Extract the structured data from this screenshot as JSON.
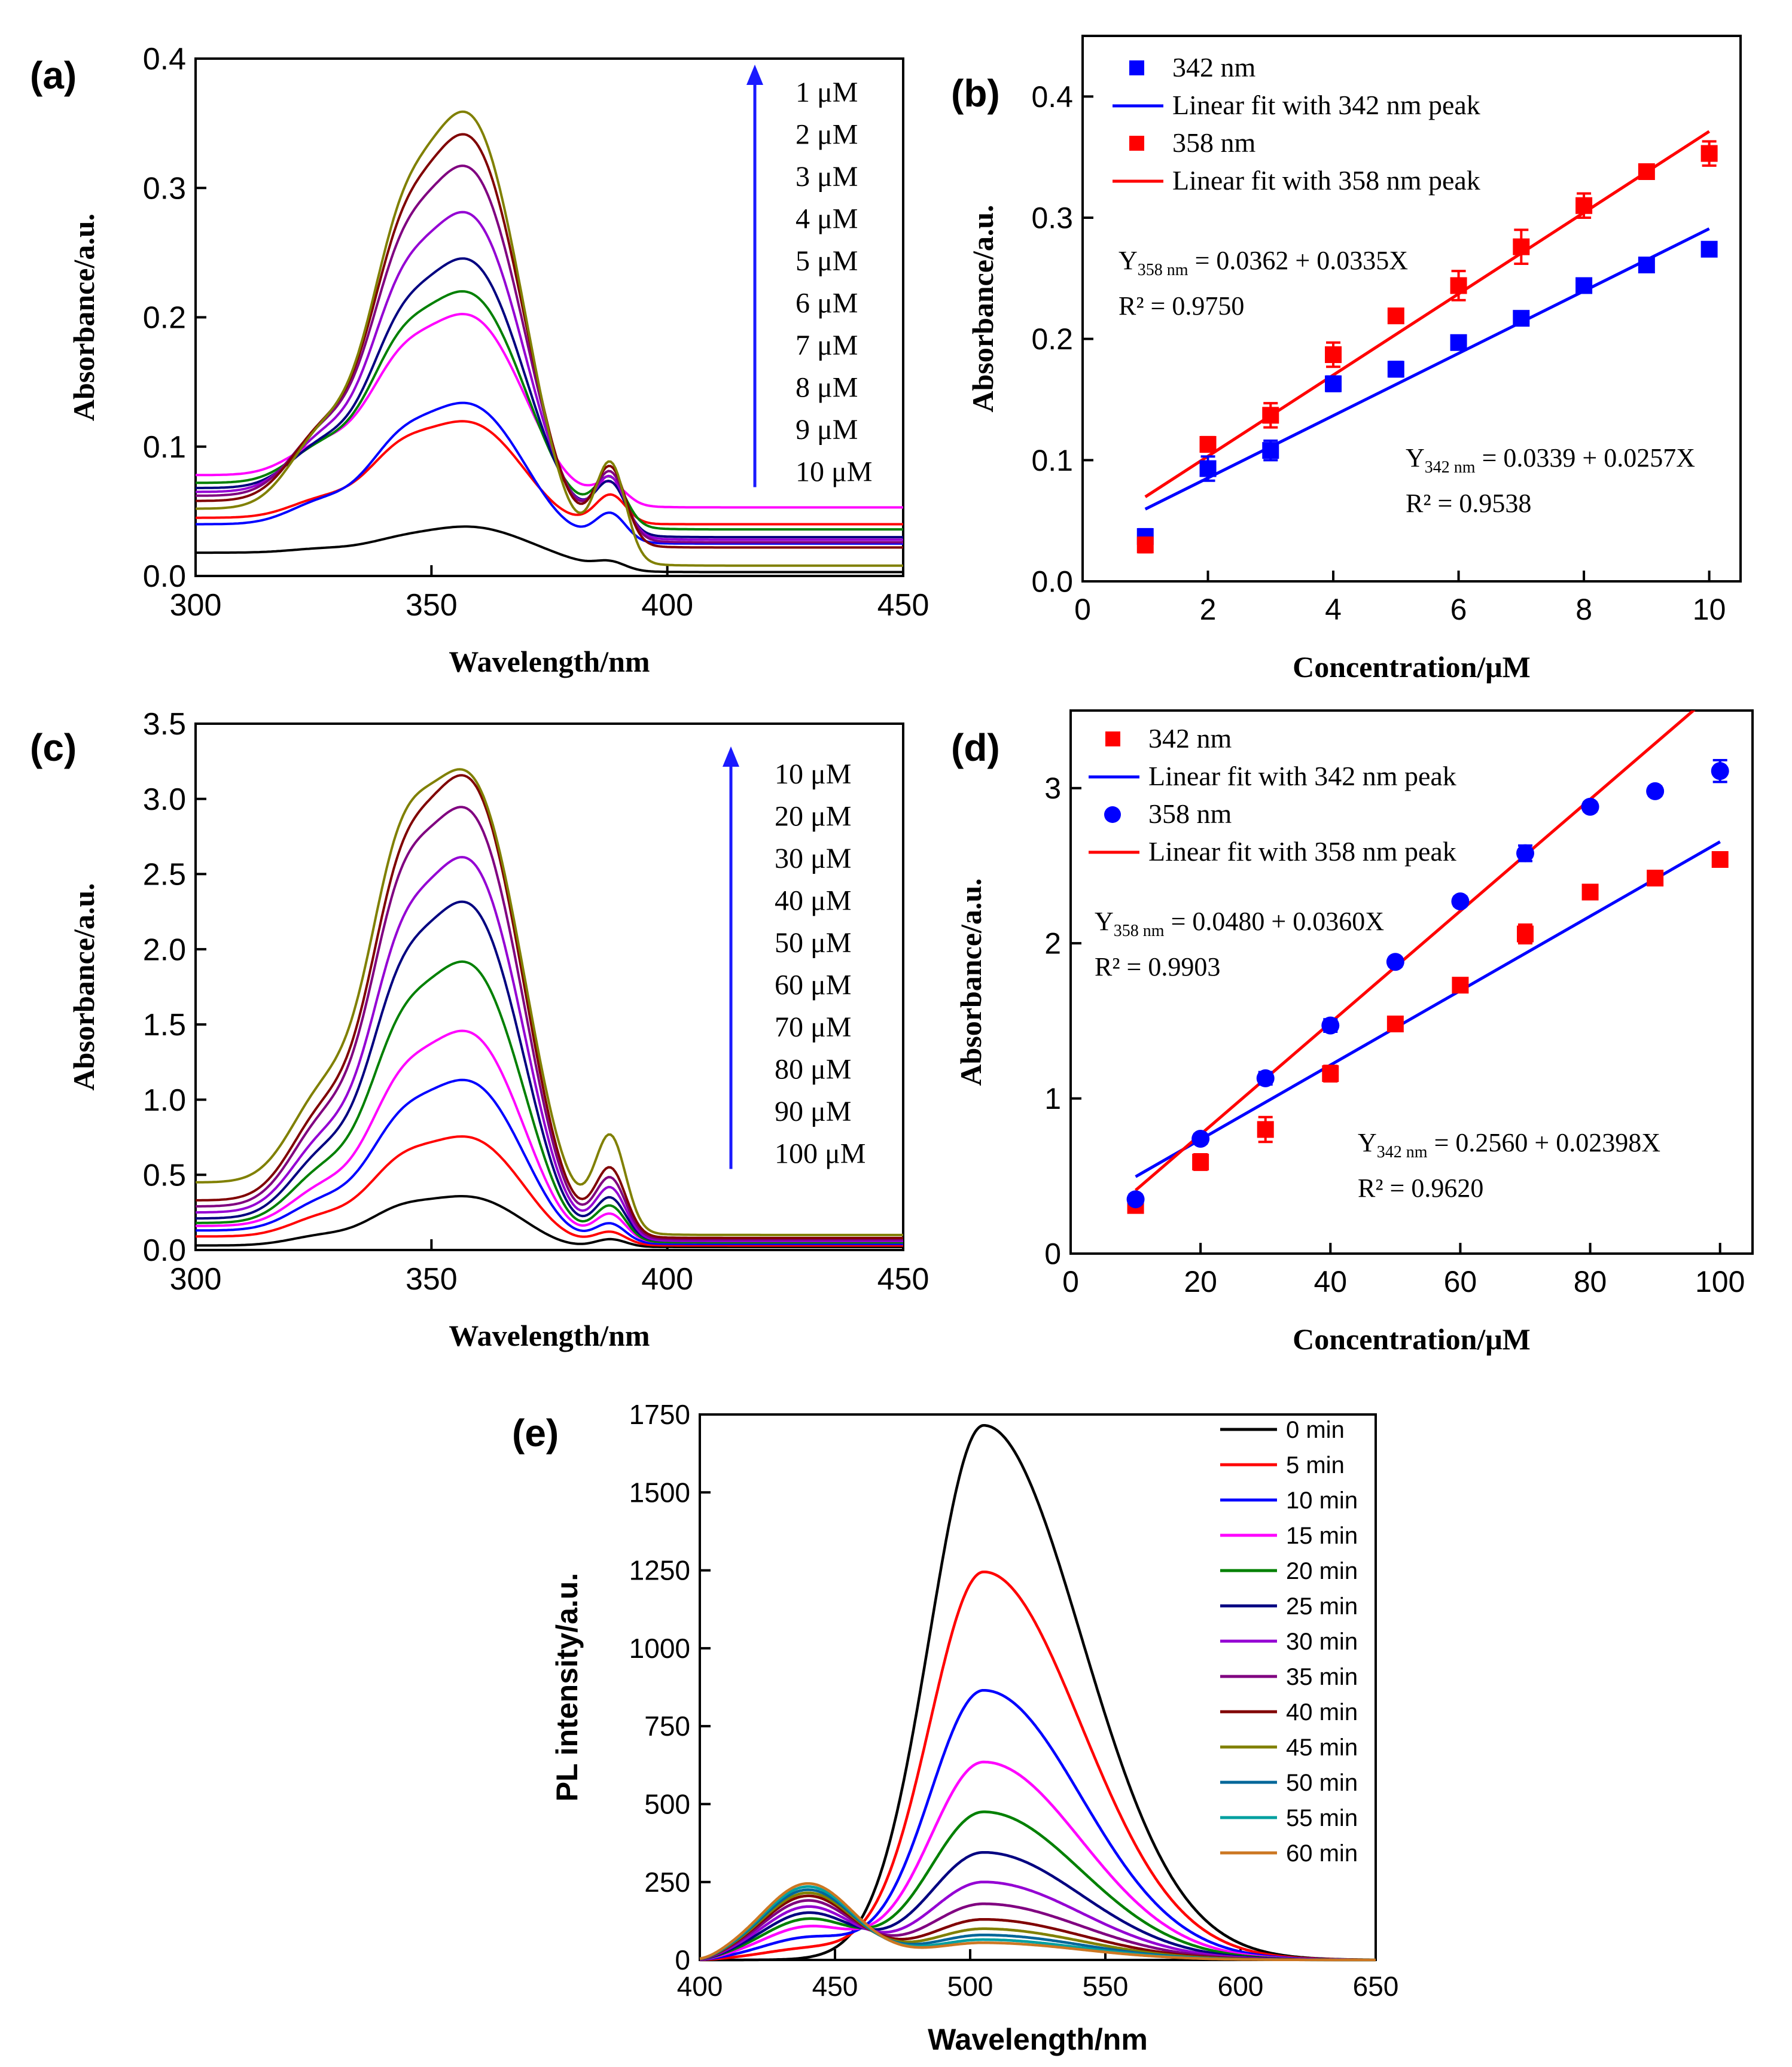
{
  "chart_data": [
    {
      "panel": "(a)",
      "type": "line",
      "xlabel": "Wavelength/nm",
      "ylabel": "Absorbance/a.u.",
      "xlim": [
        300,
        450
      ],
      "ylim": [
        0.0,
        0.4
      ],
      "xticks": [
        "300",
        "350",
        "400",
        "450"
      ],
      "yticks": [
        "0.0",
        "0.1",
        "0.2",
        "0.3",
        "0.4"
      ],
      "legend": [
        "1 μM",
        "2 μM",
        "3 μM",
        "4 μM",
        "5 μM",
        "6 μM",
        "7 μM",
        "8 μM",
        "9 μM",
        "10 μM"
      ],
      "series": [
        {
          "name": "1 μM",
          "color": "#000000",
          "base": 0.018,
          "peak358": 0.038,
          "peak342": 0.03,
          "peak388": 0.009,
          "tail": 0.003
        },
        {
          "name": "2 μM",
          "color": "#ff0000",
          "base": 0.045,
          "peak358": 0.118,
          "peak342": 0.1,
          "peak388": 0.062,
          "tail": 0.04
        },
        {
          "name": "3 μM",
          "color": "#0000ff",
          "base": 0.04,
          "peak358": 0.132,
          "peak342": 0.107,
          "peak388": 0.046,
          "tail": 0.025
        },
        {
          "name": "4 μM",
          "color": "#ff00ff",
          "base": 0.078,
          "peak358": 0.2,
          "peak342": 0.168,
          "peak388": 0.068,
          "tail": 0.053
        },
        {
          "name": "5 μM",
          "color": "#008000",
          "base": 0.072,
          "peak358": 0.217,
          "peak342": 0.18,
          "peak388": 0.07,
          "tail": 0.036
        },
        {
          "name": "6 μM",
          "color": "#000080",
          "base": 0.068,
          "peak358": 0.242,
          "peak342": 0.195,
          "peak388": 0.066,
          "tail": 0.03
        },
        {
          "name": "7 μM",
          "color": "#9400d3",
          "base": 0.065,
          "peak358": 0.277,
          "peak342": 0.221,
          "peak388": 0.07,
          "tail": 0.028
        },
        {
          "name": "8 μM",
          "color": "#800080",
          "base": 0.062,
          "peak358": 0.312,
          "peak342": 0.246,
          "peak388": 0.074,
          "tail": 0.026
        },
        {
          "name": "9 μM",
          "color": "#800000",
          "base": 0.058,
          "peak358": 0.336,
          "peak342": 0.26,
          "peak388": 0.078,
          "tail": 0.022
        },
        {
          "name": "10 μM",
          "color": "#808000",
          "base": 0.052,
          "peak358": 0.353,
          "peak342": 0.271,
          "peak388": 0.08,
          "tail": 0.008
        }
      ]
    },
    {
      "panel": "(b)",
      "type": "scatter",
      "xlabel": "Concentration/μM",
      "ylabel": "Absorbance/a.u.",
      "xlim": [
        0,
        10.5
      ],
      "ylim": [
        0.0,
        0.45
      ],
      "xticks": [
        "0",
        "2",
        "4",
        "6",
        "8",
        "10"
      ],
      "yticks": [
        "0.0",
        "0.1",
        "0.2",
        "0.3",
        "0.4"
      ],
      "legend": [
        "342 nm",
        "Linear fit with 342 nm peak",
        "358 nm",
        "Linear fit with 358 nm peak"
      ],
      "eq358_prefix": "Y",
      "eq358_sub": "358 nm",
      "eq358_rest": " = 0.0362 + 0.0335X",
      "r2_358": "R² = 0.9750",
      "eq342_prefix": "Y",
      "eq342_sub": "342 nm",
      "eq342_rest": " = 0.0339 + 0.0257X",
      "r2_342": "R² = 0.9538",
      "x": [
        1,
        2,
        3,
        4,
        5,
        6,
        7,
        8,
        9,
        10
      ],
      "series": [
        {
          "name": "342 nm",
          "color": "#0000ff",
          "marker": "square",
          "values": [
            0.037,
            0.093,
            0.108,
            0.163,
            0.175,
            0.197,
            0.217,
            0.244,
            0.261,
            0.274
          ],
          "err": [
            0.006,
            0.01,
            0.008,
            0.006,
            0.006,
            0.004,
            0.005,
            0.004,
            0.004,
            0.004
          ]
        },
        {
          "name": "358 nm",
          "color": "#ff0000",
          "marker": "square",
          "values": [
            0.03,
            0.113,
            0.137,
            0.187,
            0.219,
            0.244,
            0.276,
            0.31,
            0.338,
            0.353
          ],
          "err": [
            0.006,
            0.006,
            0.01,
            0.01,
            0.004,
            0.012,
            0.014,
            0.01,
            0.004,
            0.01
          ]
        }
      ],
      "fits": [
        {
          "name": "Linear fit with 342 nm peak",
          "color": "#0000ff",
          "intercept": 0.0339,
          "slope": 0.0257,
          "x_range": [
            1,
            10
          ]
        },
        {
          "name": "Linear fit with 358 nm peak",
          "color": "#ff0000",
          "intercept": 0.0362,
          "slope": 0.0335,
          "x_range": [
            1,
            10
          ]
        }
      ]
    },
    {
      "panel": "(c)",
      "type": "line",
      "xlabel": "Wavelength/nm",
      "ylabel": "Absorbance/a.u.",
      "xlim": [
        300,
        450
      ],
      "ylim": [
        0.0,
        3.5
      ],
      "xticks": [
        "300",
        "350",
        "400",
        "450"
      ],
      "yticks": [
        "0.0",
        "0.5",
        "1.0",
        "1.5",
        "2.0",
        "2.5",
        "3.0",
        "3.5"
      ],
      "legend": [
        "10 μM",
        "20 μM",
        "30 μM",
        "40 μM",
        "50 μM",
        "60 μM",
        "70 μM",
        "80 μM",
        "90 μM",
        "100 μM"
      ],
      "series": [
        {
          "name": "10 μM",
          "color": "#000000",
          "base": 0.03,
          "peak358": 0.35,
          "peak342": 0.28,
          "peak388": 0.07,
          "tail": 0.02
        },
        {
          "name": "20 μM",
          "color": "#ff0000",
          "base": 0.09,
          "peak358": 0.74,
          "peak342": 0.59,
          "peak388": 0.11,
          "tail": 0.03
        },
        {
          "name": "30 μM",
          "color": "#0000ff",
          "base": 0.13,
          "peak358": 1.11,
          "peak342": 0.86,
          "peak388": 0.16,
          "tail": 0.04
        },
        {
          "name": "40 μM",
          "color": "#ff00ff",
          "base": 0.16,
          "peak358": 1.43,
          "peak342": 1.11,
          "peak388": 0.22,
          "tail": 0.05
        },
        {
          "name": "50 μM",
          "color": "#008000",
          "base": 0.18,
          "peak358": 1.88,
          "peak342": 1.46,
          "peak388": 0.27,
          "tail": 0.05
        },
        {
          "name": "60 μM",
          "color": "#000080",
          "base": 0.21,
          "peak358": 2.27,
          "peak342": 1.77,
          "peak388": 0.32,
          "tail": 0.06
        },
        {
          "name": "70 μM",
          "color": "#9400d3",
          "base": 0.25,
          "peak358": 2.56,
          "peak342": 2.01,
          "peak388": 0.38,
          "tail": 0.06
        },
        {
          "name": "80 μM",
          "color": "#800080",
          "base": 0.29,
          "peak358": 2.88,
          "peak342": 2.34,
          "peak388": 0.44,
          "tail": 0.07
        },
        {
          "name": "90 μM",
          "color": "#800000",
          "base": 0.33,
          "peak358": 3.09,
          "peak342": 2.48,
          "peak388": 0.5,
          "tail": 0.08
        },
        {
          "name": "100 μM",
          "color": "#808000",
          "base": 0.45,
          "peak358": 3.12,
          "peak342": 2.66,
          "peak388": 0.7,
          "tail": 0.1
        }
      ]
    },
    {
      "panel": "(d)",
      "type": "scatter",
      "xlabel": "Concentration/μM",
      "ylabel": "Absorbance/a.u.",
      "xlim": [
        0,
        105
      ],
      "ylim": [
        0,
        3.5
      ],
      "xticks": [
        "0",
        "20",
        "40",
        "60",
        "80",
        "100"
      ],
      "yticks": [
        "0",
        "1",
        "2",
        "3"
      ],
      "legend": [
        "342 nm",
        "Linear fit with 342 nm peak",
        "358 nm",
        "Linear fit with 358 nm peak"
      ],
      "eq358_prefix": "Y",
      "eq358_sub": "358 nm",
      "eq358_rest": " = 0.0480 + 0.0360X",
      "r2_358": "R² = 0.9903",
      "eq342_prefix": "Y",
      "eq342_sub": "342 nm",
      "eq342_rest": " = 0.2560 + 0.02398X",
      "r2_342": "R² = 0.9620",
      "x": [
        10,
        20,
        30,
        40,
        50,
        60,
        70,
        80,
        90,
        100
      ],
      "series": [
        {
          "name": "342 nm",
          "color": "#ff0000",
          "marker": "square",
          "values": [
            0.31,
            0.59,
            0.8,
            1.16,
            1.48,
            1.73,
            2.06,
            2.33,
            2.42,
            2.54
          ],
          "err": [
            0.04,
            0.05,
            0.08,
            0.05,
            0.03,
            0.03,
            0.06,
            0.03,
            0.02,
            0.03
          ]
        },
        {
          "name": "358 nm",
          "color": "#0000ff",
          "marker": "circle",
          "values": [
            0.35,
            0.74,
            1.13,
            1.47,
            1.88,
            2.27,
            2.58,
            2.88,
            2.98,
            3.11
          ],
          "err": [
            0.03,
            0.03,
            0.04,
            0.04,
            0.03,
            0.03,
            0.05,
            0.03,
            0.03,
            0.07
          ]
        }
      ],
      "fits": [
        {
          "name": "Linear fit with 342 nm peak",
          "color": "#0000ff",
          "intercept": 0.256,
          "slope": 0.02398,
          "x_range": [
            10,
            100
          ]
        },
        {
          "name": "Linear fit with 358 nm peak",
          "color": "#ff0000",
          "intercept": 0.048,
          "slope": 0.036,
          "x_range": [
            10,
            97
          ]
        }
      ]
    },
    {
      "panel": "(e)",
      "type": "line",
      "xlabel": "Wavelength/nm",
      "ylabel": "PL intensity/a.u.",
      "xlim": [
        400,
        650
      ],
      "ylim": [
        0,
        1750
      ],
      "xticks": [
        "400",
        "450",
        "500",
        "550",
        "600",
        "650"
      ],
      "yticks": [
        "0",
        "250",
        "500",
        "750",
        "1000",
        "1250",
        "1500",
        "1750"
      ],
      "legend": [
        "0 min",
        "5 min",
        "10 min",
        "15 min",
        "20 min",
        "25 min",
        "30 min",
        "35 min",
        "40 min",
        "45 min",
        "50 min",
        "55 min",
        "60 min"
      ],
      "series": [
        {
          "name": "0 min",
          "color": "#000000",
          "peak505": 1715,
          "peak440": 0
        },
        {
          "name": "5 min",
          "color": "#ff0000",
          "peak505": 1245,
          "peak440": 35
        },
        {
          "name": "10 min",
          "color": "#0000ff",
          "peak505": 865,
          "peak440": 70
        },
        {
          "name": "15 min",
          "color": "#ff00ff",
          "peak505": 635,
          "peak440": 105
        },
        {
          "name": "20 min",
          "color": "#008000",
          "peak505": 475,
          "peak440": 130
        },
        {
          "name": "25 min",
          "color": "#000080",
          "peak505": 345,
          "peak440": 150
        },
        {
          "name": "30 min",
          "color": "#9400d3",
          "peak505": 250,
          "peak440": 170
        },
        {
          "name": "35 min",
          "color": "#800080",
          "peak505": 180,
          "peak440": 190
        },
        {
          "name": "40 min",
          "color": "#800000",
          "peak505": 130,
          "peak440": 205
        },
        {
          "name": "45 min",
          "color": "#808000",
          "peak505": 100,
          "peak440": 215
        },
        {
          "name": "50 min",
          "color": "#006699",
          "peak505": 80,
          "peak440": 225
        },
        {
          "name": "55 min",
          "color": "#00a0a0",
          "peak505": 65,
          "peak440": 235
        },
        {
          "name": "60 min",
          "color": "#cc7722",
          "peak505": 55,
          "peak440": 245
        }
      ]
    }
  ],
  "labels": {
    "a": "(a)",
    "b": "(b)",
    "c": "(c)",
    "d": "(d)",
    "e": "(e)"
  }
}
